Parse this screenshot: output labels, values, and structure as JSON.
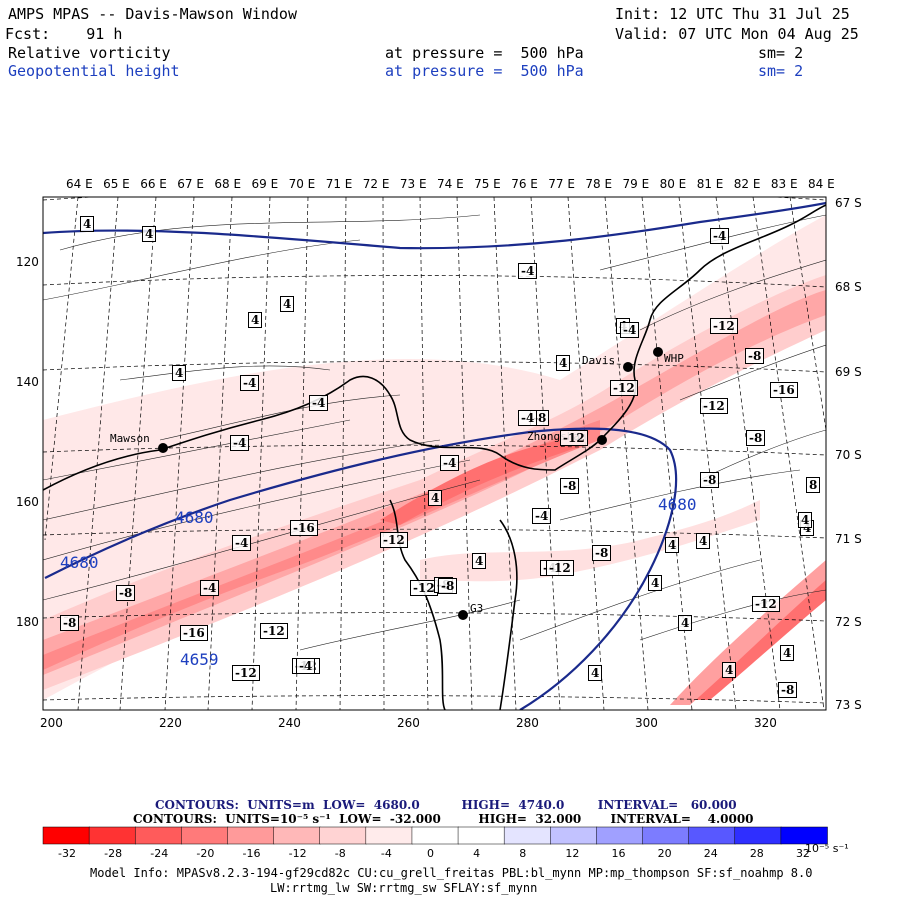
{
  "header": {
    "title": "AMPS MPAS -- Davis-Mawson Window",
    "init": "Init: 12 UTC Thu 31 Jul 25",
    "forecast": "Fcst:    91 h",
    "valid": "Valid: 07 UTC Mon 04 Aug 25",
    "field1": {
      "name": "Relative vorticity",
      "level": "at pressure =  500 hPa",
      "sm": "sm= 2"
    },
    "field2": {
      "name": "Geopotential height",
      "level": "at pressure =  500 hPa",
      "sm": "sm= 2"
    }
  },
  "map": {
    "lon_labels": [
      "64 E",
      "65 E",
      "66 E",
      "67 E",
      "68 E",
      "69 E",
      "70 E",
      "71 E",
      "72 E",
      "73 E",
      "74 E",
      "75 E",
      "76 E",
      "77 E",
      "78 E",
      "79 E",
      "80 E",
      "81 E",
      "82 E",
      "83 E",
      "84 E"
    ],
    "lat_labels": [
      "67 S",
      "68 S",
      "69 S",
      "70 S",
      "71 S",
      "72 S",
      "73 S"
    ],
    "x_ticks": [
      "200",
      "220",
      "240",
      "260",
      "280",
      "300",
      "320"
    ],
    "y_ticks": [
      "120",
      "140",
      "160",
      "180"
    ],
    "stations": [
      "Mawson",
      "Davis",
      "WHP",
      "Zhongshan",
      "G3"
    ],
    "height_labels": [
      "4680",
      "4680",
      "4680",
      "4659"
    ],
    "vort_labels": [
      "4",
      "4",
      "4",
      "4",
      "4",
      "-4",
      "-4",
      "-4",
      "-4",
      "-4",
      "-4",
      "4",
      "-8",
      "-16",
      "-12",
      "-12",
      "-4",
      "-12",
      "-8",
      "-16",
      "-12",
      "-8",
      "-4",
      "-4",
      "-8",
      "-8",
      "4",
      "-12",
      "-8",
      "-12",
      "-16",
      "-12",
      "-12",
      "-12",
      "-8",
      "4",
      "4",
      "4",
      "8",
      "4",
      "-12",
      "4",
      "4",
      "-8",
      "-4",
      "4",
      "4",
      "4",
      "-8",
      "-4",
      "-4",
      "-8",
      "4",
      "-8",
      "-12",
      "4",
      "-4"
    ],
    "colors": {
      "height_contour": "#1a2a8c",
      "coast": "#000000"
    }
  },
  "colorbar": {
    "ticks": [
      "-32",
      "-28",
      "-24",
      "-20",
      "-16",
      "-12",
      "-8",
      "-4",
      "0",
      "4",
      "8",
      "12",
      "16",
      "20",
      "24",
      "28",
      "32"
    ],
    "unit": "10⁻⁵ s⁻¹",
    "colors": [
      "#ff0000",
      "#ff3333",
      "#ff5b5b",
      "#ff7a7a",
      "#ff9a9a",
      "#ffb8b8",
      "#ffd3d3",
      "#ffebeb",
      "#ffffff",
      "#ffffff",
      "#e4e4ff",
      "#c2c2ff",
      "#a0a0ff",
      "#7c7cff",
      "#5858ff",
      "#2f2fff",
      "#0000ff"
    ]
  },
  "contour_info": {
    "line1": "CONTOURS:  UNITS=m  LOW=  4680.0          HIGH=  4740.0        INTERVAL=   60.000",
    "line2": "CONTOURS:  UNITS=10⁻⁵ s⁻¹  LOW=  -32.000         HIGH=  32.000       INTERVAL=    4.0000"
  },
  "model_info": {
    "line1": "Model Info: MPASv8.2.3-194-gf29cd82c CU:cu_grell_freitas PBL:bl_mynn MP:mp_thompson SF:sf_noahmp 8.0",
    "line2": "LW:rrtmg_lw SW:rrtmg_sw SFLAY:sf_mynn"
  }
}
